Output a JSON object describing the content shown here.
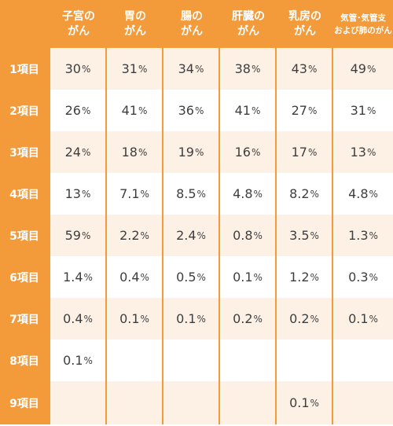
{
  "headers": [
    {
      "lines": [
        "子宮の",
        "がん"
      ]
    },
    {
      "lines": [
        "胃の",
        "がん"
      ]
    },
    {
      "lines": [
        "腸の",
        "がん"
      ]
    },
    {
      "lines": [
        "肝臓の",
        "がん"
      ]
    },
    {
      "lines": [
        "乳房の",
        "がん"
      ]
    },
    {
      "lines": [
        "気管･気管支",
        "および肺のがん"
      ]
    }
  ],
  "rows": [
    {
      "label": "1項目",
      "values": [
        "30",
        "31",
        "34",
        "38",
        "43",
        "49"
      ]
    },
    {
      "label": "2項目",
      "values": [
        "26",
        "41",
        "36",
        "41",
        "27",
        "31"
      ]
    },
    {
      "label": "3項目",
      "values": [
        "24",
        "18",
        "19",
        "16",
        "17",
        "13"
      ]
    },
    {
      "label": "4項目",
      "values": [
        "13",
        "7.1",
        "8.5",
        "4.8",
        "8.2",
        "4.8"
      ]
    },
    {
      "label": "5項目",
      "values": [
        "59",
        "2.2",
        "2.4",
        "0.8",
        "3.5",
        "1.3"
      ]
    },
    {
      "label": "6項目",
      "values": [
        "1.4",
        "0.4",
        "0.5",
        "0.1",
        "1.2",
        "0.3"
      ]
    },
    {
      "label": "7項目",
      "values": [
        "0.4",
        "0.1",
        "0.1",
        "0.2",
        "0.2",
        "0.1"
      ]
    },
    {
      "label": "8項目",
      "values": [
        "0.1",
        "",
        "",
        "",
        "",
        ""
      ]
    },
    {
      "label": "9項目",
      "values": [
        "",
        "",
        "",
        "",
        "0.1",
        ""
      ]
    }
  ],
  "unit": "%",
  "colors": {
    "accent": "#f39a3a",
    "stripe": "#fdf1e6",
    "text": "#3e3e3e"
  }
}
